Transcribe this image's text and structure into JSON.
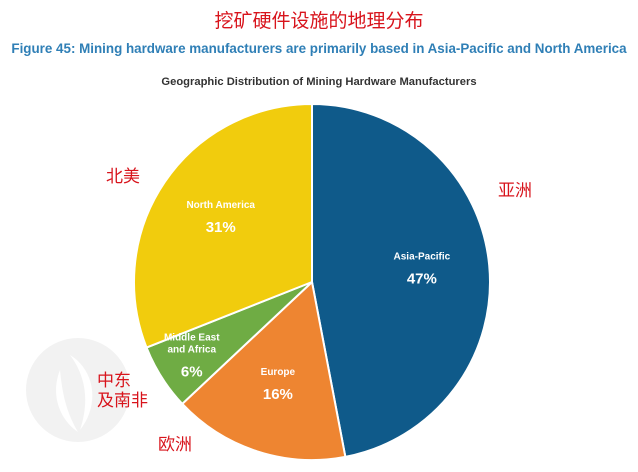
{
  "annotation_title": "挖矿硬件设施的地理分布",
  "figure_title": "Figure 45: Mining hardware manufacturers are primarily based in Asia-Pacific and North America",
  "chart_data": {
    "type": "pie",
    "title": "Geographic Distribution of Mining Hardware Manufacturers",
    "slices": [
      {
        "label": "Asia-Pacific",
        "value": 47,
        "value_label": "47%",
        "color": "#0f5a8a",
        "annotation": "亚洲"
      },
      {
        "label": "Europe",
        "value": 16,
        "value_label": "16%",
        "color": "#ee8531",
        "annotation": "欧洲"
      },
      {
        "label": "Middle East and Africa",
        "value": 6,
        "value_label": "6%",
        "color": "#6fac44",
        "annotation": "中东\n及南非"
      },
      {
        "label": "North America",
        "value": 31,
        "value_label": "31%",
        "color": "#f1cc0d",
        "annotation": "北美"
      }
    ]
  }
}
